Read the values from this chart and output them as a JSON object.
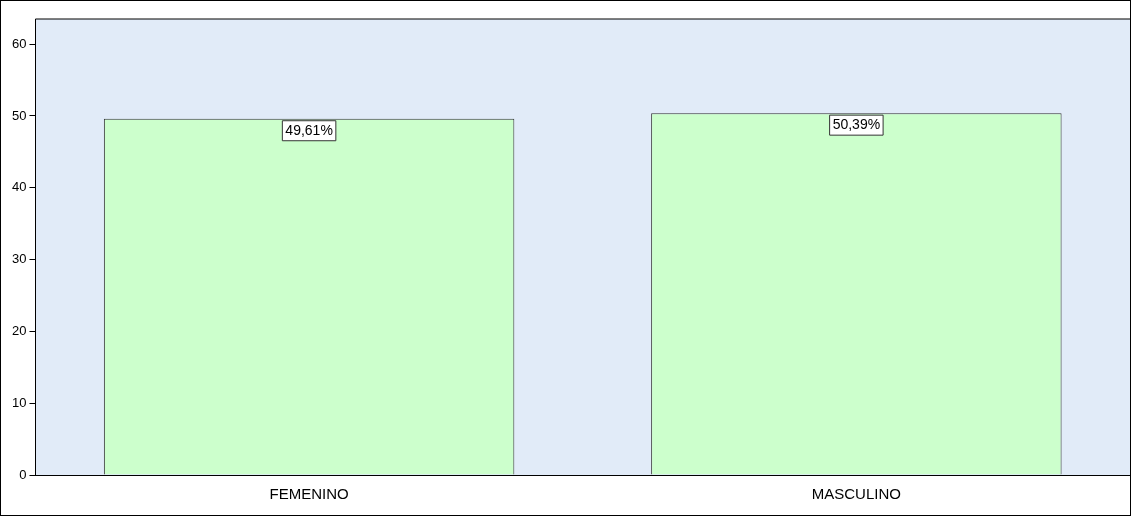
{
  "chart_data": {
    "type": "bar",
    "categories": [
      "FEMENINO",
      "MASCULINO"
    ],
    "values": [
      49.61,
      50.39
    ],
    "color": "#ccffcc",
    "value_labels": [
      "49,61%",
      "50,39%"
    ],
    "ylim": [
      0,
      63.5
    ],
    "yticks": [
      0,
      10,
      20,
      30,
      40,
      50,
      60
    ],
    "grid": false,
    "legend": false
  }
}
